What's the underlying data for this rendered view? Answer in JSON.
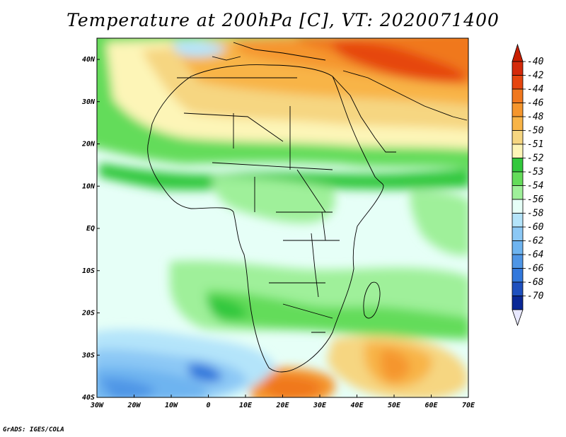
{
  "title": "Temperature at 200hPa [C], VT: 2020071400",
  "credit": "GrADS: IGES/COLA",
  "map": {
    "x_ticks": [
      "30W",
      "20W",
      "10W",
      "0",
      "10E",
      "20E",
      "30E",
      "40E",
      "50E",
      "60E",
      "70E"
    ],
    "y_ticks": [
      "40N",
      "30N",
      "20N",
      "10N",
      "EQ",
      "10S",
      "20S",
      "30S",
      "40S"
    ]
  },
  "colorbar": {
    "labels": [
      "-40",
      "-42",
      "-44",
      "-46",
      "-48",
      "-50",
      "-51",
      "-52",
      "-53",
      "-54",
      "-56",
      "-58",
      "-60",
      "-62",
      "-64",
      "-66",
      "-68",
      "-70"
    ],
    "colors": [
      "#d42a0a",
      "#e6460f",
      "#f0781e",
      "#f5962d",
      "#f8b447",
      "#f6d681",
      "#fdf5b7",
      "#32c83c",
      "#64dc5a",
      "#9ff09a",
      "#e6fff7",
      "#b4e4fa",
      "#8cc8f5",
      "#6eb4f0",
      "#4f96e6",
      "#3278dc",
      "#1e50be",
      "#0a2896"
    ],
    "top_arrow": "#c81e00",
    "bottom_arrow": "#e8e8ff"
  }
}
